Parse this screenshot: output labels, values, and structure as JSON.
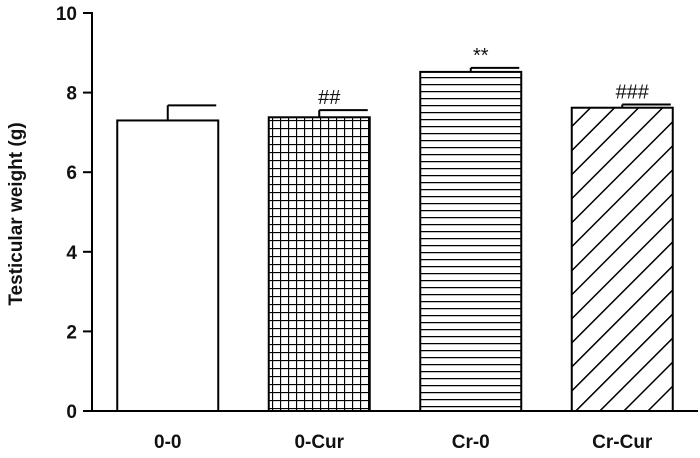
{
  "chart_data": {
    "type": "bar",
    "categories": [
      "0-0",
      "0-Cur",
      "Cr-0",
      "Cr-Cur"
    ],
    "values": [
      7.3,
      7.38,
      8.52,
      7.62
    ],
    "errors": [
      0.38,
      0.18,
      0.1,
      0.08
    ],
    "annotations": [
      "",
      "##",
      "**",
      "###"
    ],
    "patterns": [
      "solid",
      "grid",
      "horizontal-lines",
      "diagonal-lines"
    ],
    "ylabel": "Testicular  weight (g)",
    "xlabel": "",
    "ylim": [
      0,
      10
    ],
    "yticks": [
      0,
      2,
      4,
      6,
      8,
      10
    ],
    "grid": false,
    "colors": {
      "stroke": "#000000",
      "fill": "#ffffff"
    }
  }
}
